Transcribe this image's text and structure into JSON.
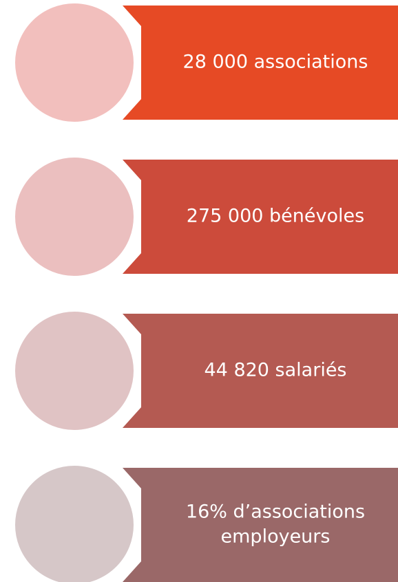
{
  "items": [
    {
      "lines": [
        "28 000 associations"
      ],
      "banner_color": "#e64a25",
      "circle_color": "#f2bfbd"
    },
    {
      "lines": [
        "275 000 bénévoles"
      ],
      "banner_color": "#cc4b3b",
      "circle_color": "#ebbfbf"
    },
    {
      "lines": [
        "44 820 salariés"
      ],
      "banner_color": "#b45a52",
      "circle_color": "#e0c3c4"
    },
    {
      "lines": [
        "16% d’associations",
        "employeurs"
      ],
      "banner_color": "#9a6868",
      "circle_color": "#d6c7c8"
    }
  ]
}
